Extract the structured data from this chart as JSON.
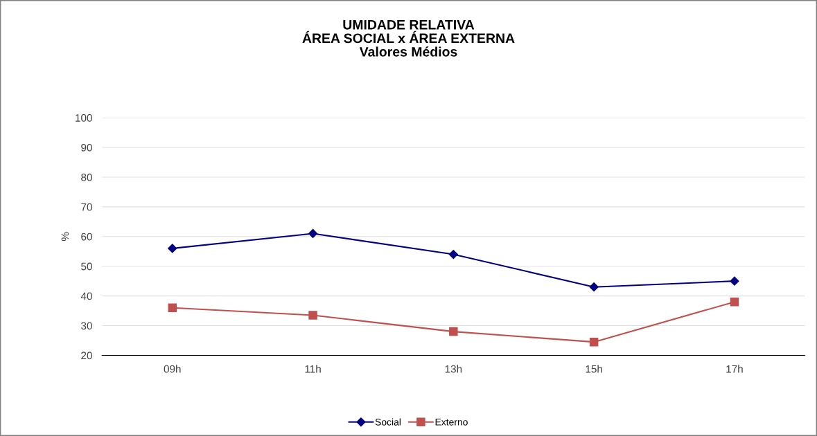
{
  "chart_data": {
    "type": "line",
    "title": "UMIDADE RELATIVA\nÁREA SOCIAL x ÁREA EXTERNA\nValores Médios",
    "ylabel": "%",
    "categories": [
      "09h",
      "11h",
      "13h",
      "15h",
      "17h"
    ],
    "series": [
      {
        "name": "Social",
        "color": "#000080",
        "marker": "diamond",
        "values": [
          56,
          61,
          54,
          43,
          45
        ]
      },
      {
        "name": "Externo",
        "color": "#c0504d",
        "marker": "square",
        "values": [
          36,
          33.5,
          28,
          24.5,
          38
        ]
      }
    ],
    "ylim": [
      20,
      100
    ],
    "yticks": [
      20,
      30,
      40,
      50,
      60,
      70,
      80,
      90,
      100
    ],
    "grid": "y",
    "legend": "bottom",
    "line_style": "solid"
  }
}
